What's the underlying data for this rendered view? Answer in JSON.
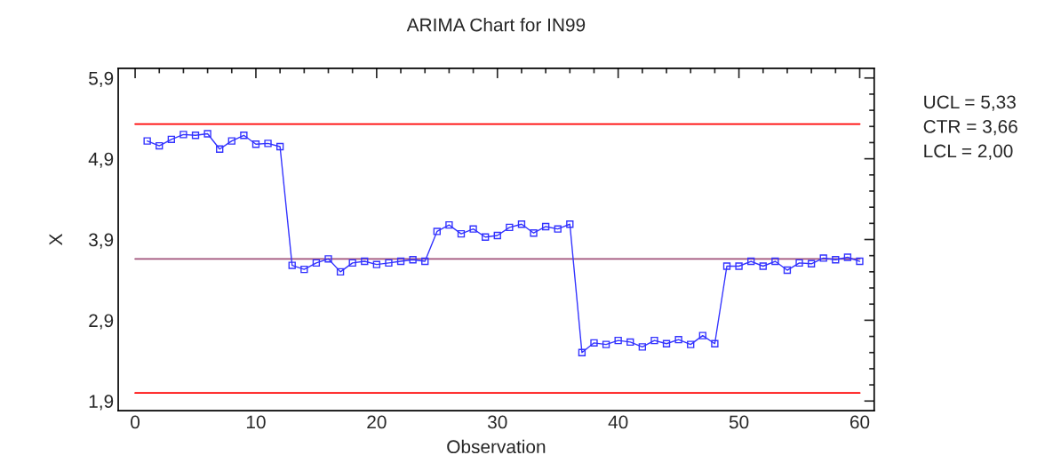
{
  "chart_data": {
    "type": "line",
    "title": "ARIMA Chart for IN99",
    "xlabel": "Observation",
    "ylabel": "X",
    "x": [
      1,
      2,
      3,
      4,
      5,
      6,
      7,
      8,
      9,
      10,
      11,
      12,
      13,
      14,
      15,
      16,
      17,
      18,
      19,
      20,
      21,
      22,
      23,
      24,
      25,
      26,
      27,
      28,
      29,
      30,
      31,
      32,
      33,
      34,
      35,
      36,
      37,
      38,
      39,
      40,
      41,
      42,
      43,
      44,
      45,
      46,
      47,
      48,
      49,
      50,
      51,
      52,
      53,
      54,
      55,
      56,
      57,
      58,
      59,
      60
    ],
    "series": [
      {
        "color": "#3333ff",
        "values": [
          5.12,
          5.06,
          5.14,
          5.2,
          5.19,
          5.21,
          5.02,
          5.12,
          5.19,
          5.08,
          5.09,
          5.05,
          3.58,
          3.53,
          3.61,
          3.66,
          3.5,
          3.61,
          3.63,
          3.59,
          3.61,
          3.63,
          3.65,
          3.63,
          4.0,
          4.08,
          3.97,
          4.03,
          3.93,
          3.95,
          4.05,
          4.09,
          3.98,
          4.06,
          4.03,
          4.09,
          2.5,
          2.62,
          2.6,
          2.65,
          2.63,
          2.57,
          2.65,
          2.61,
          2.66,
          2.6,
          2.71,
          2.61,
          3.57,
          3.57,
          3.63,
          3.57,
          3.63,
          3.52,
          3.61,
          3.6,
          3.67,
          3.65,
          3.68,
          3.63
        ]
      }
    ],
    "marker": "square",
    "line_style": "solid",
    "grid": false,
    "legend": false,
    "xlim": [
      -1.4,
      61.2
    ],
    "ylim": [
      1.78,
      6.02
    ],
    "xticks": [
      0,
      {
        "value": 2,
        "label": null
      },
      {
        "value": 4,
        "label": null
      },
      {
        "value": 6,
        "label": null
      },
      {
        "value": 8,
        "label": null
      },
      10,
      {
        "value": 12,
        "label": null
      },
      {
        "value": 14,
        "label": null
      },
      {
        "value": 16,
        "label": null
      },
      {
        "value": 18,
        "label": null
      },
      20,
      {
        "value": 22,
        "label": null
      },
      {
        "value": 24,
        "label": null
      },
      {
        "value": 26,
        "label": null
      },
      {
        "value": 28,
        "label": null
      },
      30,
      {
        "value": 32,
        "label": null
      },
      {
        "value": 34,
        "label": null
      },
      {
        "value": 36,
        "label": null
      },
      {
        "value": 38,
        "label": null
      },
      40,
      {
        "value": 42,
        "label": null
      },
      {
        "value": 44,
        "label": null
      },
      {
        "value": 46,
        "label": null
      },
      {
        "value": 48,
        "label": null
      },
      50,
      {
        "value": 52,
        "label": null
      },
      {
        "value": 54,
        "label": null
      },
      {
        "value": 56,
        "label": null
      },
      {
        "value": 58,
        "label": null
      },
      60
    ],
    "yticks": [
      {
        "value": 1.9,
        "label": "1,9"
      },
      {
        "value": 2.1,
        "label": null
      },
      {
        "value": 2.3,
        "label": null
      },
      {
        "value": 2.5,
        "label": null
      },
      {
        "value": 2.7,
        "label": null
      },
      {
        "value": 2.9,
        "label": "2,9"
      },
      {
        "value": 3.1,
        "label": null
      },
      {
        "value": 3.3,
        "label": null
      },
      {
        "value": 3.5,
        "label": null
      },
      {
        "value": 3.7,
        "label": null
      },
      {
        "value": 3.9,
        "label": "3,9"
      },
      {
        "value": 4.1,
        "label": null
      },
      {
        "value": 4.3,
        "label": null
      },
      {
        "value": 4.5,
        "label": null
      },
      {
        "value": 4.7,
        "label": null
      },
      {
        "value": 4.9,
        "label": "4,9"
      },
      {
        "value": 5.1,
        "label": null
      },
      {
        "value": 5.3,
        "label": null
      },
      {
        "value": 5.5,
        "label": null
      },
      {
        "value": 5.7,
        "label": null
      },
      {
        "value": 5.9,
        "label": "5,9"
      }
    ],
    "annotations": [
      "UCL = 5,33",
      "CTR = 3,66",
      "LCL = 2,00"
    ],
    "ref_lines": [
      {
        "axis": "y",
        "value": 5.33,
        "color": "#ff0000"
      },
      {
        "axis": "y",
        "value": 3.66,
        "color": "#a0527a"
      },
      {
        "axis": "y",
        "value": 2.0,
        "color": "#ff0000"
      }
    ]
  }
}
